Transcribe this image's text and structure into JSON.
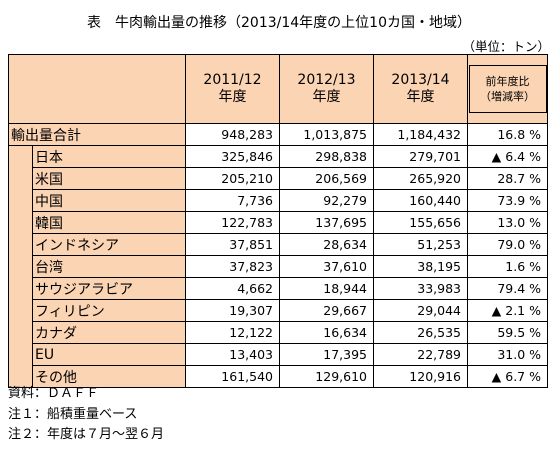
{
  "title": "表　牛肉輸出量の推移（2013/14年度の上位10カ国・地域）",
  "unit": "（単位：トン）",
  "headers": {
    "col1": [
      "2011/12",
      "年度"
    ],
    "col2": [
      "2012/13",
      "年度"
    ],
    "col3": [
      "2013/14",
      "年度"
    ],
    "change": [
      "前年度比",
      "（増減率）"
    ]
  },
  "total": {
    "label": "輸出量合計",
    "v1": "948,283",
    "v2": "1,013,875",
    "v3": "1,184,432",
    "chg": "16.8 %"
  },
  "rows": [
    {
      "label": "日本",
      "v1": "325,846",
      "v2": "298,838",
      "v3": "279,701",
      "chg": "▲ 6.4 %"
    },
    {
      "label": "米国",
      "v1": "205,210",
      "v2": "206,569",
      "v3": "265,920",
      "chg": "28.7 %"
    },
    {
      "label": "中国",
      "v1": "7,736",
      "v2": "92,279",
      "v3": "160,440",
      "chg": "73.9 %"
    },
    {
      "label": "韓国",
      "v1": "122,783",
      "v2": "137,695",
      "v3": "155,656",
      "chg": "13.0 %"
    },
    {
      "label": "インドネシア",
      "v1": "37,851",
      "v2": "28,634",
      "v3": "51,253",
      "chg": "79.0 %"
    },
    {
      "label": "台湾",
      "v1": "37,823",
      "v2": "37,610",
      "v3": "38,195",
      "chg": "1.6 %"
    },
    {
      "label": "サウジアラビア",
      "v1": "4,662",
      "v2": "18,944",
      "v3": "33,983",
      "chg": "79.4 %"
    },
    {
      "label": "フィリピン",
      "v1": "19,307",
      "v2": "29,667",
      "v3": "29,044",
      "chg": "▲ 2.1 %"
    },
    {
      "label": "カナダ",
      "v1": "12,122",
      "v2": "16,634",
      "v3": "26,535",
      "chg": "59.5 %"
    },
    {
      "label": "EU",
      "v1": "13,403",
      "v2": "17,395",
      "v3": "22,789",
      "chg": "31.0 %"
    },
    {
      "label": "その他",
      "v1": "161,540",
      "v2": "129,610",
      "v3": "120,916",
      "chg": "▲ 6.7 %"
    }
  ],
  "notes": [
    "資料：ＤＡＦＦ",
    "注１：船積重量ベース",
    "注２：年度は７月～翌６月"
  ]
}
